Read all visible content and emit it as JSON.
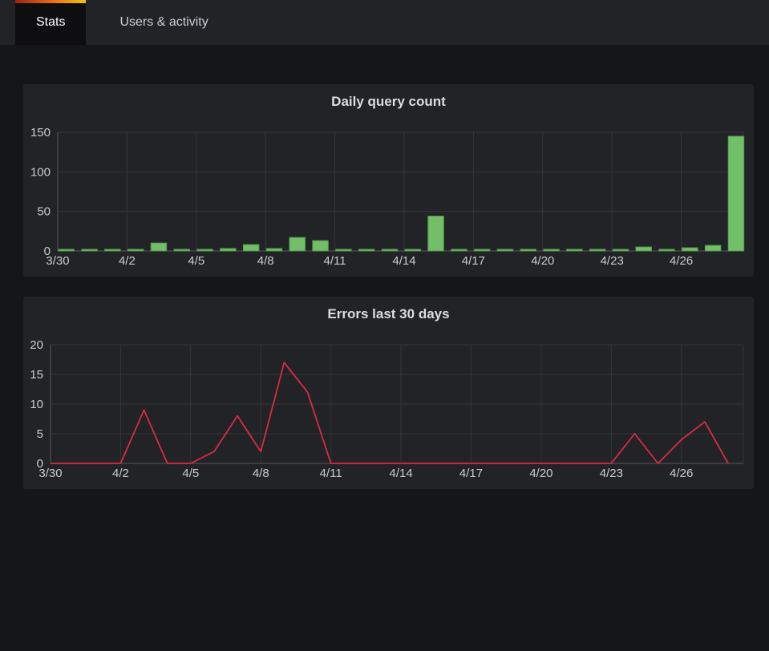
{
  "tabs": {
    "items": [
      {
        "label": "Stats",
        "active": true
      },
      {
        "label": "Users & activity",
        "active": false
      }
    ]
  },
  "colors": {
    "page_bg": "#15161a",
    "tabbar_bg": "#212327",
    "active_tab_bg": "#0e0e11",
    "accent_gradient": [
      "#9c2409",
      "#ec6f1c",
      "#f2c60c"
    ],
    "panel_bg": "#222327",
    "grid": "#34353a",
    "axis": "#55575d",
    "tick_text": "#c9ccd1",
    "title_text": "#dcdde0",
    "bar_green": "#73bf69",
    "bar_green_border": "#569a4e",
    "line_red": "#d92b44"
  },
  "chart_data": [
    {
      "type": "bar",
      "title": "Daily query count",
      "categories": [
        "3/30",
        "3/31",
        "4/1",
        "4/2",
        "4/3",
        "4/4",
        "4/5",
        "4/6",
        "4/7",
        "4/8",
        "4/9",
        "4/10",
        "4/11",
        "4/12",
        "4/13",
        "4/14",
        "4/15",
        "4/16",
        "4/17",
        "4/18",
        "4/19",
        "4/20",
        "4/21",
        "4/22",
        "4/23",
        "4/24",
        "4/25",
        "4/26",
        "4/27",
        "4/28"
      ],
      "values": [
        1,
        1,
        1,
        1,
        10,
        1,
        1,
        3,
        8,
        3,
        17,
        13,
        1,
        1,
        1,
        1,
        44,
        1,
        1,
        1,
        1,
        1,
        1,
        1,
        1,
        5,
        1,
        4,
        7,
        145
      ],
      "xlabel": "",
      "ylabel": "",
      "ylim": [
        0,
        150
      ],
      "yticks": [
        0,
        50,
        100,
        150
      ],
      "xtick_every": 3,
      "grid": true,
      "legend": "none",
      "color": "#73bf69",
      "border_color": "#569a4e"
    },
    {
      "type": "line",
      "title": "Errors last 30 days",
      "categories": [
        "3/30",
        "3/31",
        "4/1",
        "4/2",
        "4/3",
        "4/4",
        "4/5",
        "4/6",
        "4/7",
        "4/8",
        "4/9",
        "4/10",
        "4/11",
        "4/12",
        "4/13",
        "4/14",
        "4/15",
        "4/16",
        "4/17",
        "4/18",
        "4/19",
        "4/20",
        "4/21",
        "4/22",
        "4/23",
        "4/24",
        "4/25",
        "4/26",
        "4/27",
        "4/28"
      ],
      "values": [
        0,
        0,
        0,
        0,
        9,
        0,
        0,
        2,
        8,
        2,
        17,
        12,
        0,
        0,
        0,
        0,
        0,
        0,
        0,
        0,
        0,
        0,
        0,
        0,
        0,
        5,
        0,
        4,
        7,
        0
      ],
      "xlabel": "",
      "ylabel": "",
      "ylim": [
        0,
        20
      ],
      "yticks": [
        0,
        5,
        10,
        15,
        20
      ],
      "xtick_every": 3,
      "grid": true,
      "legend": "none",
      "color": "#d92b44"
    }
  ]
}
